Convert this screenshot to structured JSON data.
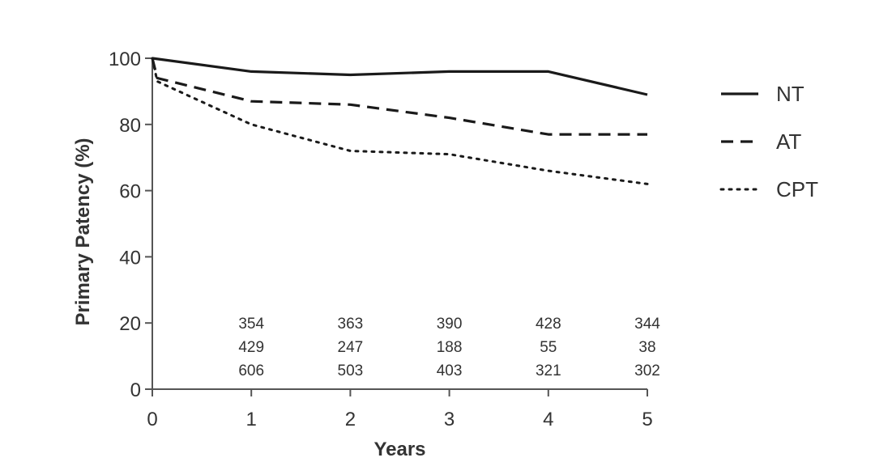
{
  "chart_data": {
    "type": "line",
    "title": "",
    "xlabel": "Years",
    "ylabel": "Primary Patency (%)",
    "xlim": [
      0,
      5
    ],
    "ylim": [
      0,
      100
    ],
    "x_ticks": [
      0,
      1,
      2,
      3,
      4,
      5
    ],
    "y_ticks": [
      0,
      20,
      40,
      60,
      80,
      100
    ],
    "grid": false,
    "legend_position": "right",
    "series": [
      {
        "name": "NT",
        "line_style": "solid",
        "x": [
          0,
          1,
          2,
          3,
          4,
          5
        ],
        "y": [
          100,
          96,
          95,
          96,
          96,
          89
        ]
      },
      {
        "name": "AT",
        "line_style": "dashed",
        "x": [
          0,
          0.05,
          1,
          2,
          3,
          4,
          5
        ],
        "y": [
          100,
          94,
          87,
          86,
          82,
          77,
          77
        ]
      },
      {
        "name": "CPT",
        "line_style": "dotted",
        "x": [
          0,
          0.05,
          1,
          2,
          3,
          4,
          5
        ],
        "y": [
          100,
          93,
          80,
          72,
          71,
          66,
          62
        ]
      }
    ],
    "at_risk": {
      "x": [
        1,
        2,
        3,
        4,
        5
      ],
      "rows": [
        [
          "354",
          "363",
          "390",
          "428",
          "344"
        ],
        [
          "429",
          "247",
          "188",
          "55",
          "38"
        ],
        [
          "606",
          "503",
          "403",
          "321",
          "302"
        ]
      ]
    }
  }
}
